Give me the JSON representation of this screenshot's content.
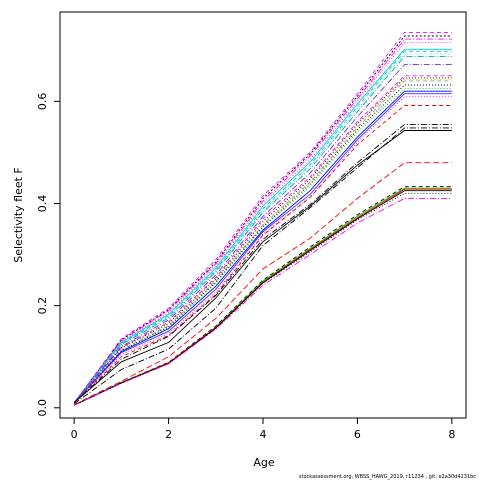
{
  "chart_data": {
    "type": "line",
    "xlabel": "Age",
    "ylabel": "Selectivity fleet F",
    "xlim": [
      -0.3,
      8.3
    ],
    "ylim": [
      -0.02,
      0.775
    ],
    "x_ticks": [
      "0",
      "2",
      "4",
      "6",
      "8"
    ],
    "y_ticks": [
      "0.0",
      "0.2",
      "0.4",
      "0.6"
    ],
    "x": [
      0,
      1,
      2,
      3,
      4,
      5,
      6,
      7,
      8
    ],
    "grid": false,
    "legend": "none",
    "series": [
      {
        "values": [
          0.01,
          0.135,
          0.195,
          0.29,
          0.415,
          0.5,
          0.615,
          0.735,
          0.735
        ],
        "color": "#ff00ff",
        "dash": "4,3"
      },
      {
        "values": [
          0.01,
          0.133,
          0.192,
          0.285,
          0.41,
          0.497,
          0.61,
          0.728,
          0.728
        ],
        "color": "#000000",
        "dash": "2,2"
      },
      {
        "values": [
          0.01,
          0.132,
          0.19,
          0.282,
          0.405,
          0.493,
          0.605,
          0.722,
          0.722
        ],
        "color": "#ff00ff",
        "dash": "6,2,1,2"
      },
      {
        "values": [
          0.01,
          0.13,
          0.186,
          0.278,
          0.4,
          0.486,
          0.6,
          0.715,
          0.715
        ],
        "color": "#ff00ff",
        "dash": "1,2"
      },
      {
        "values": [
          0.01,
          0.128,
          0.183,
          0.274,
          0.395,
          0.481,
          0.595,
          0.702,
          0.702
        ],
        "color": "#00cccc",
        "dash": ""
      },
      {
        "values": [
          0.01,
          0.126,
          0.18,
          0.27,
          0.39,
          0.476,
          0.59,
          0.698,
          0.698
        ],
        "color": "#00cccc",
        "dash": "4,3"
      },
      {
        "values": [
          0.01,
          0.125,
          0.178,
          0.268,
          0.386,
          0.472,
          0.585,
          0.693,
          0.693
        ],
        "color": "#33ccff",
        "dash": "1,2"
      },
      {
        "values": [
          0.01,
          0.124,
          0.176,
          0.266,
          0.383,
          0.468,
          0.58,
          0.688,
          0.688
        ],
        "color": "#00aaaa",
        "dash": "6,2,1,2"
      },
      {
        "values": [
          0.01,
          0.12,
          0.172,
          0.26,
          0.375,
          0.46,
          0.57,
          0.672,
          0.672
        ],
        "color": "#6633cc",
        "dash": "6,2,1,2"
      },
      {
        "values": [
          0.01,
          0.118,
          0.168,
          0.255,
          0.37,
          0.452,
          0.56,
          0.65,
          0.65
        ],
        "color": "#ff00ff",
        "dash": "4,3"
      },
      {
        "values": [
          0.01,
          0.117,
          0.165,
          0.252,
          0.365,
          0.448,
          0.556,
          0.646,
          0.646
        ],
        "color": "#000000",
        "dash": "1,2"
      },
      {
        "values": [
          0.01,
          0.115,
          0.163,
          0.25,
          0.36,
          0.445,
          0.552,
          0.643,
          0.643
        ],
        "color": "#cccc00",
        "dash": "1,2"
      },
      {
        "values": [
          0.01,
          0.113,
          0.161,
          0.248,
          0.358,
          0.442,
          0.549,
          0.64,
          0.64
        ],
        "color": "#999999",
        "dash": "4,3"
      },
      {
        "values": [
          0.01,
          0.112,
          0.159,
          0.246,
          0.355,
          0.438,
          0.545,
          0.632,
          0.632
        ],
        "color": "#000000",
        "dash": "1,2"
      },
      {
        "values": [
          0.01,
          0.11,
          0.157,
          0.244,
          0.352,
          0.434,
          0.54,
          0.625,
          0.625
        ],
        "color": "#00cc00",
        "dash": "1,2"
      },
      {
        "values": [
          0.01,
          0.11,
          0.155,
          0.238,
          0.348,
          0.425,
          0.53,
          0.62,
          0.62
        ],
        "color": "#0000ff",
        "dash": ""
      },
      {
        "values": [
          0.01,
          0.108,
          0.15,
          0.232,
          0.345,
          0.418,
          0.525,
          0.615,
          0.615
        ],
        "color": "#3333ff",
        "dash": ""
      },
      {
        "values": [
          0.01,
          0.104,
          0.146,
          0.226,
          0.34,
          0.413,
          0.52,
          0.61,
          0.61
        ],
        "color": "#ff00ff",
        "dash": "1,2"
      },
      {
        "values": [
          0.01,
          0.1,
          0.142,
          0.222,
          0.338,
          0.412,
          0.515,
          0.592,
          0.592
        ],
        "color": "#ff0000",
        "dash": "4,3"
      },
      {
        "values": [
          0.01,
          0.095,
          0.14,
          0.22,
          0.33,
          0.398,
          0.48,
          0.555,
          0.555
        ],
        "color": "#000000",
        "dash": "6,2,1,2"
      },
      {
        "values": [
          0.01,
          0.09,
          0.128,
          0.215,
          0.325,
          0.395,
          0.475,
          0.543,
          0.543
        ],
        "color": "#000000",
        "dash": ""
      },
      {
        "values": [
          0.008,
          0.075,
          0.115,
          0.195,
          0.318,
          0.392,
          0.47,
          0.548,
          0.548
        ],
        "color": "#000000",
        "dash": "6,2,1,2"
      },
      {
        "values": [
          0.006,
          0.052,
          0.1,
          0.175,
          0.272,
          0.332,
          0.41,
          0.48,
          0.48
        ],
        "color": "#ff0000",
        "dash": "6,3"
      },
      {
        "values": [
          0.005,
          0.05,
          0.089,
          0.16,
          0.25,
          0.315,
          0.378,
          0.433,
          0.433
        ],
        "color": "#000000",
        "dash": "4,3"
      },
      {
        "values": [
          0.005,
          0.05,
          0.088,
          0.158,
          0.248,
          0.312,
          0.375,
          0.43,
          0.43
        ],
        "color": "#00cc00",
        "dash": ""
      },
      {
        "values": [
          0.005,
          0.049,
          0.088,
          0.157,
          0.246,
          0.31,
          0.372,
          0.428,
          0.428
        ],
        "color": "#ff0000",
        "dash": ""
      },
      {
        "values": [
          0.005,
          0.049,
          0.087,
          0.156,
          0.245,
          0.308,
          0.37,
          0.425,
          0.425
        ],
        "color": "#000000",
        "dash": ""
      },
      {
        "values": [
          0.005,
          0.048,
          0.087,
          0.155,
          0.244,
          0.305,
          0.368,
          0.42,
          0.42
        ],
        "color": "#000000",
        "dash": "1,2"
      },
      {
        "values": [
          0.005,
          0.048,
          0.086,
          0.154,
          0.24,
          0.3,
          0.362,
          0.41,
          0.41
        ],
        "color": "#ff00ff",
        "dash": "6,2,1,2"
      }
    ]
  },
  "footer": "stockassessment.org, WBSS_HAWG_2019, r11234 , git: e2a30d4231bc"
}
